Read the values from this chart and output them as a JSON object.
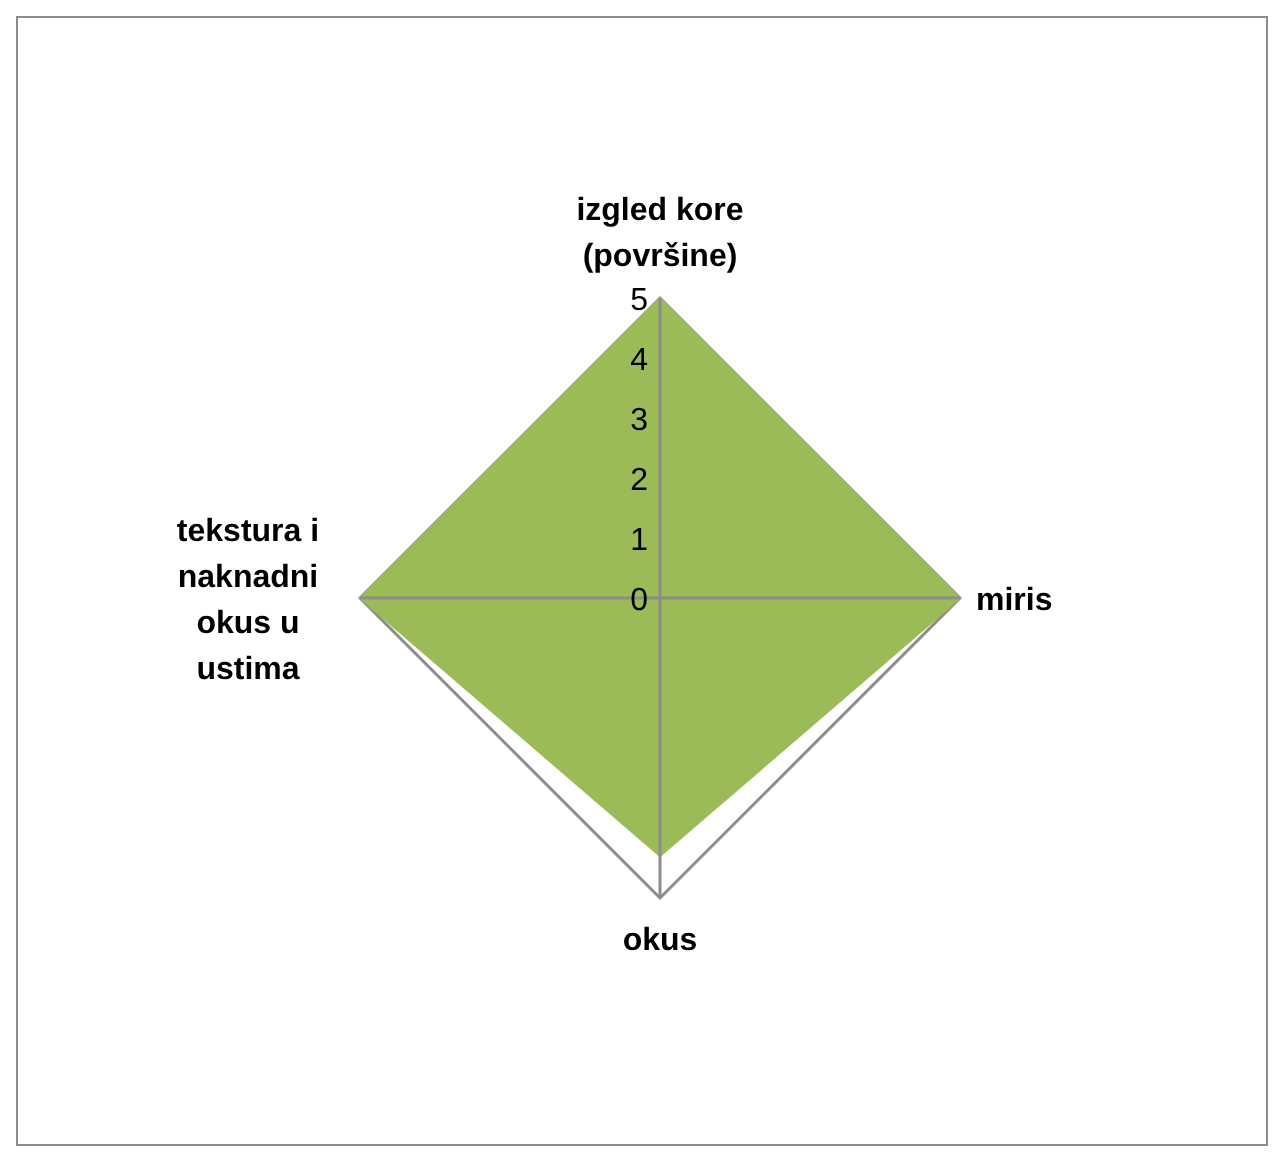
{
  "chart_data": {
    "type": "radar",
    "categories": [
      "izgled kore (površine)",
      "miris",
      "okus",
      "tekstura i naknadni okus u ustima"
    ],
    "series": [
      {
        "color": "#9bbb59",
        "values": [
          5,
          5,
          4.3,
          5
        ]
      }
    ],
    "ylim": [
      0,
      5
    ],
    "yticks": [
      0,
      1,
      2,
      3,
      4,
      5
    ],
    "grid": true
  }
}
